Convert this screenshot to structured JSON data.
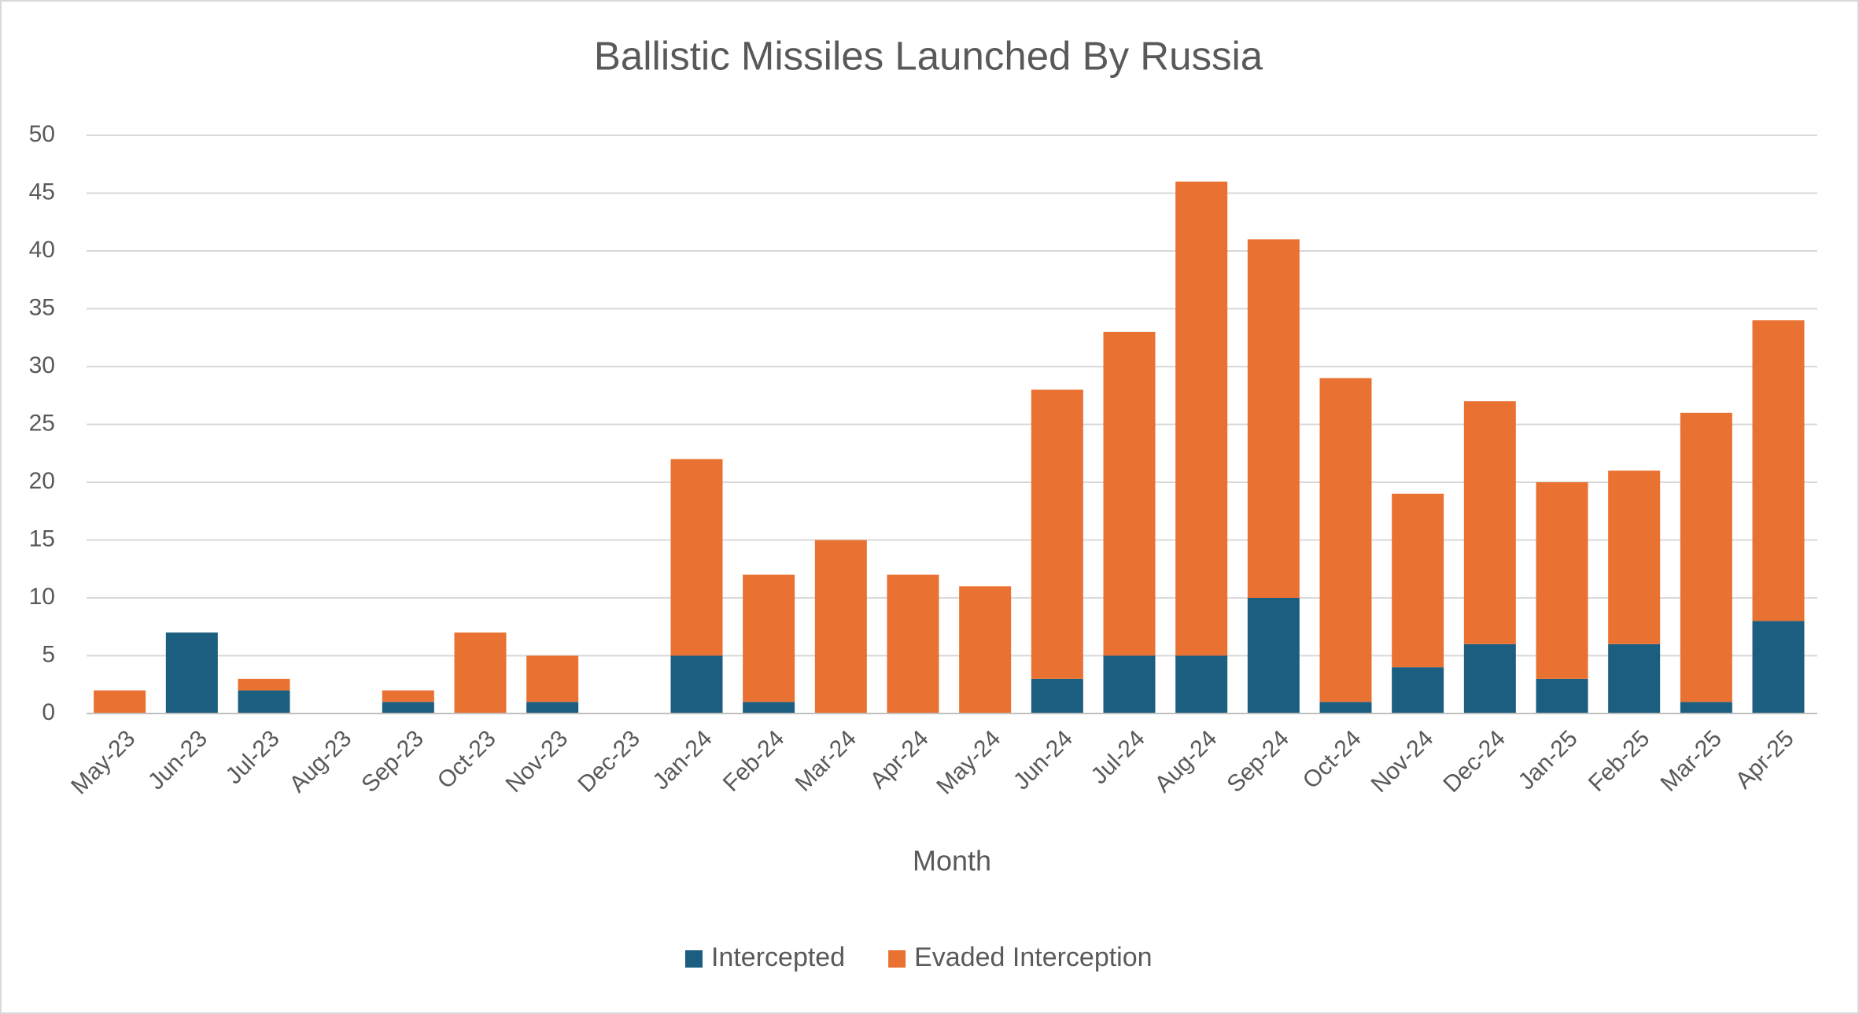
{
  "chart_data": {
    "type": "bar",
    "stacked": true,
    "title": "Ballistic Missiles Launched By Russia",
    "x_label": "Month",
    "categories": [
      "May-23",
      "Jun-23",
      "Jul-23",
      "Aug-23",
      "Sep-23",
      "Oct-23",
      "Nov-23",
      "Dec-23",
      "Jan-24",
      "Feb-24",
      "Mar-24",
      "Apr-24",
      "May-24",
      "Jun-24",
      "Jul-24",
      "Aug-24",
      "Sep-24",
      "Oct-24",
      "Nov-24",
      "Dec-24",
      "Jan-25",
      "Feb-25",
      "Mar-25",
      "Apr-25"
    ],
    "series": [
      {
        "name": "Intercepted",
        "color": "#1b5e7f",
        "values": [
          0,
          7,
          2,
          0,
          1,
          0,
          1,
          0,
          5,
          1,
          0,
          0,
          0,
          3,
          5,
          5,
          10,
          1,
          4,
          6,
          3,
          6,
          1,
          8
        ]
      },
      {
        "name": "Evaded Interception",
        "color": "#e97132",
        "values": [
          2,
          0,
          1,
          0,
          1,
          7,
          4,
          0,
          17,
          11,
          15,
          12,
          11,
          25,
          28,
          41,
          31,
          28,
          15,
          21,
          17,
          15,
          25,
          26
        ]
      }
    ],
    "ylim": [
      0,
      50
    ],
    "yticks": [
      0,
      5,
      10,
      15,
      20,
      25,
      30,
      35,
      40,
      45,
      50
    ],
    "grid": true,
    "legend": "bottom"
  }
}
